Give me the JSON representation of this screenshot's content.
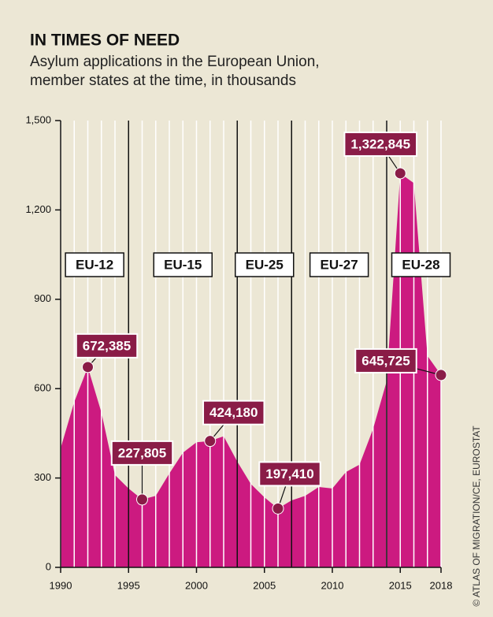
{
  "chart_data": {
    "type": "area",
    "title": "IN TIMES OF NEED",
    "subtitle": [
      "Asylum applications in the European Union,",
      "member states at the time, in thousands"
    ],
    "source": "© ATLAS OF MIGRATION/CE, EUROSTAT",
    "x": [
      1990,
      1991,
      1992,
      1993,
      1994,
      1995,
      1996,
      1997,
      1998,
      1999,
      2000,
      2001,
      2002,
      2003,
      2004,
      2005,
      2006,
      2007,
      2008,
      2009,
      2010,
      2011,
      2012,
      2013,
      2014,
      2015,
      2016,
      2017,
      2018
    ],
    "values": [
      400,
      555,
      672.385,
      520,
      310,
      265,
      227.805,
      240,
      315,
      385,
      420,
      424.18,
      440,
      355,
      280,
      235,
      197.41,
      225,
      240,
      270,
      265,
      320,
      345,
      465,
      625,
      1322.845,
      1290,
      710,
      645.725
    ],
    "value_labels": [
      null,
      null,
      "672,385",
      null,
      null,
      null,
      "227,805",
      null,
      null,
      null,
      null,
      "424,180",
      null,
      null,
      null,
      null,
      "197,410",
      null,
      null,
      null,
      null,
      null,
      null,
      null,
      null,
      "1,322,845",
      null,
      null,
      "645,725"
    ],
    "color": "#cc1a80",
    "xlim": [
      1990,
      2018
    ],
    "xticks": [
      1990,
      1995,
      2000,
      2005,
      2010,
      2015,
      2018
    ],
    "ylim": [
      0,
      1500
    ],
    "yticks": [
      0,
      300,
      600,
      900,
      {
        "value": 1200,
        "label": "1,200"
      },
      {
        "value": 1500,
        "label": "1,500"
      }
    ],
    "dividers": [
      1995,
      2003,
      2007,
      2014
    ],
    "eras": [
      "EU-12",
      "EU-15",
      "EU-25",
      "EU-27",
      "EU-28"
    ]
  }
}
